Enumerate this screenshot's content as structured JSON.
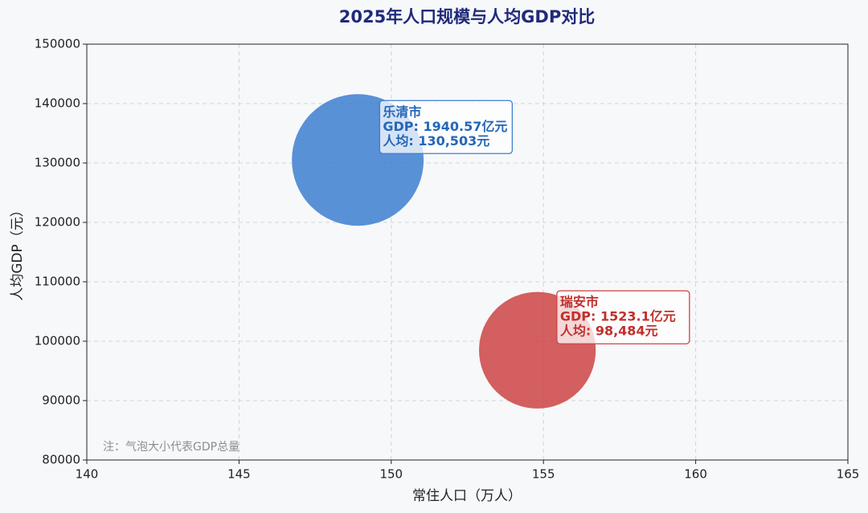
{
  "chart_data": {
    "type": "bubble",
    "title": "2025年人口规模与人均GDP对比",
    "x_label": "常住人口（万人）",
    "y_label": "人均GDP（元）",
    "note": "注：气泡大小代表GDP总量",
    "xlim": [
      140,
      165
    ],
    "xticks": [
      140,
      145,
      150,
      155,
      160,
      165
    ],
    "ylim": [
      80000,
      150000
    ],
    "yticks": [
      80000,
      90000,
      100000,
      110000,
      120000,
      130000,
      140000,
      150000
    ],
    "grid": true,
    "series": [
      {
        "name": "乐清市",
        "color": "#3d7fd0",
        "label_color": "#2467b8",
        "x": [
          148.9
        ],
        "values": [
          130503
        ],
        "sizes": [
          1940.57
        ],
        "size_label": "GDP: 1940.57亿元",
        "value_label": "人均: 130,503元"
      },
      {
        "name": "瑞安市",
        "color": "#cc4444",
        "label_color": "#c0302c",
        "x": [
          154.8
        ],
        "values": [
          98484
        ],
        "sizes": [
          1523.1
        ],
        "size_label": "GDP: 1523.1亿元",
        "value_label": "人均: 98,484元"
      }
    ]
  }
}
